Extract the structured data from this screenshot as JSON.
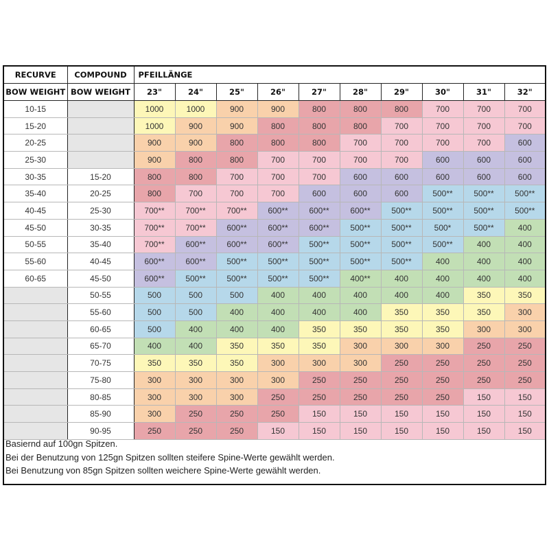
{
  "header": {
    "recurve": "RECURVE",
    "compound": "COMPOUND",
    "arrow_length": "PFEILLÄNGE",
    "recurve_sub": "BOW WEIGHT",
    "compound_sub": "BOW WEIGHT",
    "lengths": [
      "23\"",
      "24\"",
      "25\"",
      "26\"",
      "27\"",
      "28\"",
      "29\"",
      "30\"",
      "31\"",
      "32\""
    ]
  },
  "rows": [
    {
      "recurve": "10-15",
      "compound": "",
      "cells": [
        [
          "1000",
          "yellow"
        ],
        [
          "1000",
          "yellow"
        ],
        [
          "900",
          "peach"
        ],
        [
          "900",
          "peach"
        ],
        [
          "800",
          "red"
        ],
        [
          "800",
          "red"
        ],
        [
          "800",
          "red"
        ],
        [
          "700",
          "pink"
        ],
        [
          "700",
          "pink"
        ],
        [
          "700",
          "pink"
        ]
      ]
    },
    {
      "recurve": "15-20",
      "compound": "",
      "cells": [
        [
          "1000",
          "yellow"
        ],
        [
          "900",
          "peach"
        ],
        [
          "900",
          "peach"
        ],
        [
          "800",
          "red"
        ],
        [
          "800",
          "red"
        ],
        [
          "800",
          "red"
        ],
        [
          "700",
          "pink"
        ],
        [
          "700",
          "pink"
        ],
        [
          "700",
          "pink"
        ],
        [
          "700",
          "pink"
        ]
      ]
    },
    {
      "recurve": "20-25",
      "compound": "",
      "cells": [
        [
          "900",
          "peach"
        ],
        [
          "900",
          "peach"
        ],
        [
          "800",
          "red"
        ],
        [
          "800",
          "red"
        ],
        [
          "800",
          "red"
        ],
        [
          "700",
          "pink"
        ],
        [
          "700",
          "pink"
        ],
        [
          "700",
          "pink"
        ],
        [
          "700",
          "pink"
        ],
        [
          "600",
          "purple"
        ]
      ]
    },
    {
      "recurve": "25-30",
      "compound": "",
      "cells": [
        [
          "900",
          "peach"
        ],
        [
          "800",
          "red"
        ],
        [
          "800",
          "red"
        ],
        [
          "700",
          "pink"
        ],
        [
          "700",
          "pink"
        ],
        [
          "700",
          "pink"
        ],
        [
          "700",
          "pink"
        ],
        [
          "600",
          "purple"
        ],
        [
          "600",
          "purple"
        ],
        [
          "600",
          "purple"
        ]
      ]
    },
    {
      "recurve": "30-35",
      "compound": "15-20",
      "cells": [
        [
          "800",
          "red"
        ],
        [
          "800",
          "red"
        ],
        [
          "700",
          "pink"
        ],
        [
          "700",
          "pink"
        ],
        [
          "700",
          "pink"
        ],
        [
          "600",
          "purple"
        ],
        [
          "600",
          "purple"
        ],
        [
          "600",
          "purple"
        ],
        [
          "600",
          "purple"
        ],
        [
          "600",
          "purple"
        ]
      ]
    },
    {
      "recurve": "35-40",
      "compound": "20-25",
      "cells": [
        [
          "800",
          "red"
        ],
        [
          "700",
          "pink"
        ],
        [
          "700",
          "pink"
        ],
        [
          "700",
          "pink"
        ],
        [
          "600",
          "purple"
        ],
        [
          "600",
          "purple"
        ],
        [
          "600",
          "purple"
        ],
        [
          "500**",
          "blue"
        ],
        [
          "500**",
          "blue"
        ],
        [
          "500**",
          "blue"
        ]
      ]
    },
    {
      "recurve": "40-45",
      "compound": "25-30",
      "cells": [
        [
          "700**",
          "pink"
        ],
        [
          "700**",
          "pink"
        ],
        [
          "700**",
          "pink"
        ],
        [
          "600**",
          "purple"
        ],
        [
          "600**",
          "purple"
        ],
        [
          "600**",
          "purple"
        ],
        [
          "500**",
          "blue"
        ],
        [
          "500**",
          "blue"
        ],
        [
          "500**",
          "blue"
        ],
        [
          "500**",
          "blue"
        ]
      ]
    },
    {
      "recurve": "45-50",
      "compound": "30-35",
      "cells": [
        [
          "700**",
          "pink"
        ],
        [
          "700**",
          "pink"
        ],
        [
          "600**",
          "purple"
        ],
        [
          "600**",
          "purple"
        ],
        [
          "600**",
          "purple"
        ],
        [
          "500**",
          "blue"
        ],
        [
          "500**",
          "blue"
        ],
        [
          "500*",
          "blue"
        ],
        [
          "500**",
          "blue"
        ],
        [
          "400",
          "green"
        ]
      ]
    },
    {
      "recurve": "50-55",
      "compound": "35-40",
      "cells": [
        [
          "700**",
          "pink"
        ],
        [
          "600**",
          "purple"
        ],
        [
          "600**",
          "purple"
        ],
        [
          "600**",
          "purple"
        ],
        [
          "500**",
          "blue"
        ],
        [
          "500**",
          "blue"
        ],
        [
          "500**",
          "blue"
        ],
        [
          "500**",
          "blue"
        ],
        [
          "400",
          "green"
        ],
        [
          "400",
          "green"
        ]
      ]
    },
    {
      "recurve": "55-60",
      "compound": "40-45",
      "cells": [
        [
          "600**",
          "purple"
        ],
        [
          "600**",
          "purple"
        ],
        [
          "500**",
          "blue"
        ],
        [
          "500**",
          "blue"
        ],
        [
          "500**",
          "blue"
        ],
        [
          "500**",
          "blue"
        ],
        [
          "500**",
          "blue"
        ],
        [
          "400",
          "green"
        ],
        [
          "400",
          "green"
        ],
        [
          "400",
          "green"
        ]
      ]
    },
    {
      "recurve": "60-65",
      "compound": "45-50",
      "cells": [
        [
          "600**",
          "purple"
        ],
        [
          "500**",
          "blue"
        ],
        [
          "500**",
          "blue"
        ],
        [
          "500**",
          "blue"
        ],
        [
          "500**",
          "blue"
        ],
        [
          "400**",
          "green"
        ],
        [
          "400",
          "green"
        ],
        [
          "400",
          "green"
        ],
        [
          "400",
          "green"
        ],
        [
          "400",
          "green"
        ]
      ]
    },
    {
      "recurve": "",
      "compound": "50-55",
      "cells": [
        [
          "500",
          "blue"
        ],
        [
          "500",
          "blue"
        ],
        [
          "500",
          "blue"
        ],
        [
          "400",
          "green"
        ],
        [
          "400",
          "green"
        ],
        [
          "400",
          "green"
        ],
        [
          "400",
          "green"
        ],
        [
          "400",
          "green"
        ],
        [
          "350",
          "yellow"
        ],
        [
          "350",
          "yellow"
        ]
      ]
    },
    {
      "recurve": "",
      "compound": "55-60",
      "cells": [
        [
          "500",
          "blue"
        ],
        [
          "500",
          "blue"
        ],
        [
          "400",
          "green"
        ],
        [
          "400",
          "green"
        ],
        [
          "400",
          "green"
        ],
        [
          "400",
          "green"
        ],
        [
          "350",
          "yellow"
        ],
        [
          "350",
          "yellow"
        ],
        [
          "350",
          "yellow"
        ],
        [
          "300",
          "peach"
        ]
      ]
    },
    {
      "recurve": "",
      "compound": "60-65",
      "cells": [
        [
          "500",
          "blue"
        ],
        [
          "400",
          "green"
        ],
        [
          "400",
          "green"
        ],
        [
          "400",
          "green"
        ],
        [
          "350",
          "yellow"
        ],
        [
          "350",
          "yellow"
        ],
        [
          "350",
          "yellow"
        ],
        [
          "350",
          "yellow"
        ],
        [
          "300",
          "peach"
        ],
        [
          "300",
          "peach"
        ]
      ]
    },
    {
      "recurve": "",
      "compound": "65-70",
      "cells": [
        [
          "400",
          "green"
        ],
        [
          "400",
          "green"
        ],
        [
          "350",
          "yellow"
        ],
        [
          "350",
          "yellow"
        ],
        [
          "350",
          "yellow"
        ],
        [
          "300",
          "peach"
        ],
        [
          "300",
          "peach"
        ],
        [
          "300",
          "peach"
        ],
        [
          "250",
          "red"
        ],
        [
          "250",
          "red"
        ]
      ]
    },
    {
      "recurve": "",
      "compound": "70-75",
      "cells": [
        [
          "350",
          "yellow"
        ],
        [
          "350",
          "yellow"
        ],
        [
          "350",
          "yellow"
        ],
        [
          "300",
          "peach"
        ],
        [
          "300",
          "peach"
        ],
        [
          "300",
          "peach"
        ],
        [
          "250",
          "red"
        ],
        [
          "250",
          "red"
        ],
        [
          "250",
          "red"
        ],
        [
          "250",
          "red"
        ]
      ]
    },
    {
      "recurve": "",
      "compound": "75-80",
      "cells": [
        [
          "300",
          "peach"
        ],
        [
          "300",
          "peach"
        ],
        [
          "300",
          "peach"
        ],
        [
          "300",
          "peach"
        ],
        [
          "250",
          "red"
        ],
        [
          "250",
          "red"
        ],
        [
          "250",
          "red"
        ],
        [
          "250",
          "red"
        ],
        [
          "250",
          "red"
        ],
        [
          "250",
          "red"
        ]
      ]
    },
    {
      "recurve": "",
      "compound": "80-85",
      "cells": [
        [
          "300",
          "peach"
        ],
        [
          "300",
          "peach"
        ],
        [
          "300",
          "peach"
        ],
        [
          "250",
          "red"
        ],
        [
          "250",
          "red"
        ],
        [
          "250",
          "red"
        ],
        [
          "250",
          "red"
        ],
        [
          "250",
          "red"
        ],
        [
          "150",
          "pink"
        ],
        [
          "150",
          "pink"
        ]
      ]
    },
    {
      "recurve": "",
      "compound": "85-90",
      "cells": [
        [
          "300",
          "peach"
        ],
        [
          "250",
          "red"
        ],
        [
          "250",
          "red"
        ],
        [
          "250",
          "red"
        ],
        [
          "150",
          "pink"
        ],
        [
          "150",
          "pink"
        ],
        [
          "150",
          "pink"
        ],
        [
          "150",
          "pink"
        ],
        [
          "150",
          "pink"
        ],
        [
          "150",
          "pink"
        ]
      ]
    },
    {
      "recurve": "",
      "compound": "90-95",
      "cells": [
        [
          "250",
          "red"
        ],
        [
          "250",
          "red"
        ],
        [
          "250",
          "red"
        ],
        [
          "150",
          "pink"
        ],
        [
          "150",
          "pink"
        ],
        [
          "150",
          "pink"
        ],
        [
          "150",
          "pink"
        ],
        [
          "150",
          "pink"
        ],
        [
          "150",
          "pink"
        ],
        [
          "150",
          "pink"
        ]
      ]
    }
  ],
  "notes": [
    "Basiernd auf 100gn Spitzen.",
    "Bei der Benutzung von 125gn Spitzen sollten steifere Spine-Werte gewählt werden.",
    "Bei Benutzung von 85gn Spitzen sollten weichere Spine-Werte gewählt werden."
  ]
}
